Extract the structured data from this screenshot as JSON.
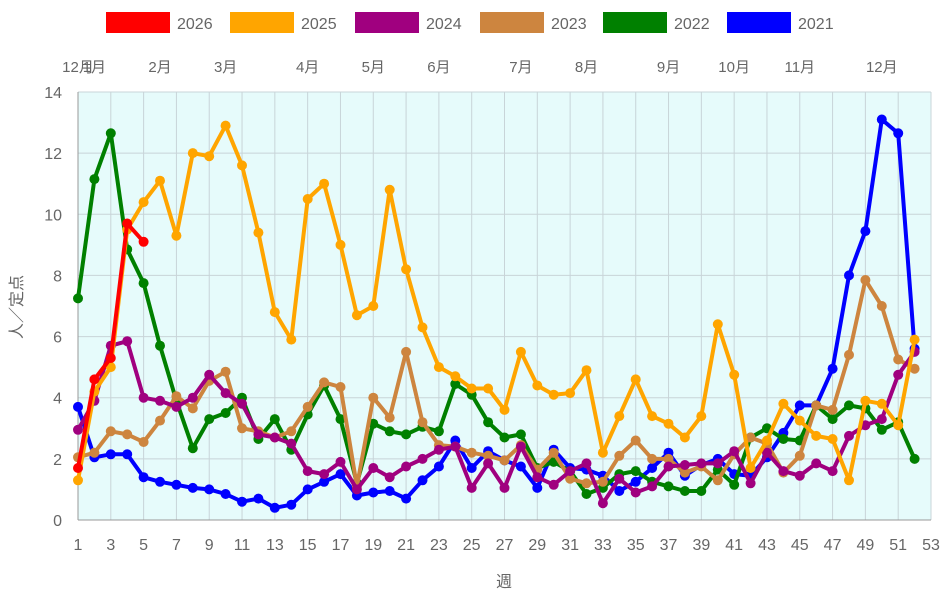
{
  "chart_data": {
    "type": "line",
    "title": "",
    "xlabel": "週",
    "ylabel": "人／定点",
    "xlim": [
      1,
      53
    ],
    "ylim": [
      0,
      14
    ],
    "x_ticks": [
      1,
      3,
      5,
      7,
      9,
      11,
      13,
      15,
      17,
      19,
      21,
      23,
      25,
      27,
      29,
      31,
      33,
      35,
      37,
      39,
      41,
      43,
      45,
      47,
      49,
      51,
      53
    ],
    "y_ticks": [
      0,
      2,
      4,
      6,
      8,
      10,
      12,
      14
    ],
    "month_labels": [
      {
        "week": 1,
        "label": "12月"
      },
      {
        "week": 2,
        "label": "1月"
      },
      {
        "week": 6,
        "label": "2月"
      },
      {
        "week": 10,
        "label": "3月"
      },
      {
        "week": 15,
        "label": "4月"
      },
      {
        "week": 19,
        "label": "5月"
      },
      {
        "week": 23,
        "label": "6月"
      },
      {
        "week": 28,
        "label": "7月"
      },
      {
        "week": 32,
        "label": "8月"
      },
      {
        "week": 37,
        "label": "9月"
      },
      {
        "week": 41,
        "label": "10月"
      },
      {
        "week": 45,
        "label": "11月"
      },
      {
        "week": 50,
        "label": "12月"
      }
    ],
    "grid": true,
    "legend_position": "top",
    "plot_background": "#e6fbfb",
    "series": [
      {
        "name": "2026",
        "color": "#ff0000",
        "values": [
          1.7,
          4.6,
          5.3,
          9.7,
          9.1
        ]
      },
      {
        "name": "2025",
        "color": "#ffa500",
        "values": [
          1.3,
          4.2,
          5.0,
          9.5,
          10.4,
          11.1,
          9.3,
          12.0,
          11.9,
          12.9,
          11.6,
          9.4,
          6.8,
          5.9,
          10.5,
          11.0,
          9.0,
          6.7,
          7.0,
          10.8,
          8.2,
          6.3,
          5.0,
          4.7,
          4.3,
          4.3,
          3.6,
          5.5,
          4.4,
          4.1,
          4.15,
          4.9,
          2.2,
          3.4,
          4.6,
          3.4,
          3.15,
          2.7,
          3.4,
          6.4,
          4.75,
          1.7,
          2.6,
          3.8,
          3.25,
          2.75,
          2.65,
          1.3,
          3.9,
          3.8,
          3.1,
          5.9
        ]
      },
      {
        "name": "2024",
        "color": "#a0007f",
        "values": [
          2.95,
          3.9,
          5.7,
          5.85,
          4.0,
          3.9,
          3.7,
          4.0,
          4.75,
          4.15,
          3.8,
          2.8,
          2.7,
          2.5,
          1.6,
          1.5,
          1.9,
          1.0,
          1.7,
          1.4,
          1.75,
          2.0,
          2.3,
          2.4,
          1.05,
          1.85,
          1.05,
          2.4,
          1.4,
          1.15,
          1.6,
          1.85,
          0.55,
          1.35,
          0.9,
          1.1,
          1.75,
          1.8,
          1.85,
          1.85,
          2.25,
          1.2,
          2.2,
          1.6,
          1.45,
          1.85,
          1.6,
          2.75,
          3.1,
          3.3,
          4.75,
          5.5
        ]
      },
      {
        "name": "2023",
        "color": "#cd853f",
        "values": [
          2.05,
          2.2,
          2.9,
          2.8,
          2.55,
          3.25,
          4.05,
          3.65,
          4.55,
          4.85,
          3.0,
          2.9,
          2.7,
          2.9,
          3.7,
          4.5,
          4.35,
          1.1,
          4.0,
          3.35,
          5.5,
          3.2,
          2.45,
          2.4,
          2.2,
          2.1,
          1.95,
          2.45,
          1.65,
          2.2,
          1.35,
          1.2,
          1.25,
          2.1,
          2.6,
          2.0,
          2.0,
          1.55,
          1.75,
          1.3,
          2.15,
          2.7,
          2.5,
          1.55,
          2.1,
          3.75,
          3.6,
          5.4,
          7.85,
          7.0,
          5.25,
          4.95
        ]
      },
      {
        "name": "2022",
        "color": "#008000",
        "values": [
          7.25,
          11.15,
          12.65,
          8.85,
          7.75,
          5.7,
          3.9,
          2.35,
          3.3,
          3.5,
          4.0,
          2.65,
          3.3,
          2.3,
          3.45,
          4.4,
          3.3,
          1.2,
          3.15,
          2.9,
          2.8,
          3.05,
          2.9,
          4.45,
          4.1,
          3.2,
          2.7,
          2.8,
          1.7,
          1.9,
          1.6,
          0.85,
          1.05,
          1.5,
          1.6,
          1.25,
          1.1,
          0.95,
          0.95,
          1.65,
          1.15,
          2.7,
          3.0,
          2.65,
          2.6,
          3.75,
          3.3,
          3.75,
          3.65,
          2.95,
          3.2,
          2.0
        ]
      },
      {
        "name": "2021",
        "color": "#0000ff",
        "values": [
          3.7,
          2.05,
          2.15,
          2.15,
          1.4,
          1.25,
          1.15,
          1.05,
          1.0,
          0.85,
          0.6,
          0.7,
          0.4,
          0.5,
          1.0,
          1.25,
          1.5,
          0.8,
          0.9,
          0.95,
          0.7,
          1.3,
          1.75,
          2.6,
          1.7,
          2.25,
          1.95,
          1.75,
          1.05,
          2.3,
          1.7,
          1.65,
          1.45,
          0.95,
          1.25,
          1.7,
          2.2,
          1.45,
          1.8,
          2.0,
          1.5,
          1.45,
          2.05,
          2.85,
          3.75,
          3.75,
          4.95,
          8.0,
          9.45,
          13.1,
          12.65,
          5.6
        ]
      }
    ]
  }
}
